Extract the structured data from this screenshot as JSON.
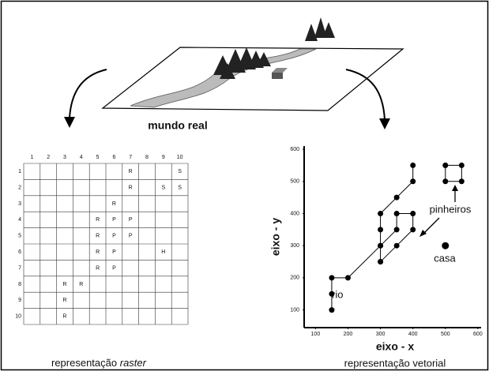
{
  "title": "mundo real",
  "raster": {
    "caption": "representação",
    "caption_em": "raster",
    "columns": [
      "1",
      "2",
      "3",
      "4",
      "5",
      "6",
      "7",
      "8",
      "9",
      "10"
    ],
    "rows": [
      "1",
      "2",
      "3",
      "4",
      "5",
      "6",
      "7",
      "8",
      "9",
      "10"
    ],
    "cells": [
      [
        null,
        null,
        null,
        null,
        null,
        null,
        "R",
        null,
        null,
        "S"
      ],
      [
        null,
        null,
        null,
        null,
        null,
        null,
        "R",
        null,
        "S",
        "S"
      ],
      [
        null,
        null,
        null,
        null,
        null,
        "R",
        null,
        null,
        null,
        null
      ],
      [
        null,
        null,
        null,
        null,
        "R",
        "P",
        "P",
        null,
        null,
        null
      ],
      [
        null,
        null,
        null,
        null,
        "R",
        "P",
        "P",
        null,
        null,
        null
      ],
      [
        null,
        null,
        null,
        null,
        "R",
        "P",
        null,
        null,
        "H",
        null
      ],
      [
        null,
        null,
        null,
        null,
        "R",
        "P",
        null,
        null,
        null,
        null
      ],
      [
        null,
        null,
        "R",
        "R",
        null,
        null,
        null,
        null,
        null,
        null
      ],
      [
        null,
        null,
        "R",
        null,
        null,
        null,
        null,
        null,
        null,
        null
      ],
      [
        null,
        null,
        "R",
        null,
        null,
        null,
        null,
        null,
        null,
        null
      ]
    ]
  },
  "vector": {
    "caption": "representação vetorial",
    "xlabel": "eixo - x",
    "ylabel": "eixo - y",
    "xlim": [
      65,
      610
    ],
    "ylim": [
      45,
      610
    ],
    "xticks": [
      100,
      200,
      300,
      400,
      500,
      600
    ],
    "yticks": [
      100,
      200,
      300,
      400,
      500,
      600
    ],
    "lines": [
      [
        [
          150,
          100
        ],
        [
          150,
          150
        ],
        [
          150,
          200
        ],
        [
          200,
          200
        ],
        [
          300,
          300
        ],
        [
          300,
          350
        ],
        [
          300,
          400
        ],
        [
          350,
          450
        ],
        [
          400,
          500
        ],
        [
          400,
          550
        ]
      ],
      [
        [
          300,
          250
        ],
        [
          300,
          300
        ],
        [
          350,
          350
        ],
        [
          350,
          400
        ],
        [
          400,
          400
        ],
        [
          400,
          350
        ],
        [
          350,
          300
        ],
        [
          300,
          250
        ]
      ],
      [
        [
          500,
          550
        ],
        [
          550,
          550
        ],
        [
          550,
          500
        ],
        [
          500,
          500
        ],
        [
          500,
          550
        ]
      ]
    ],
    "points": [
      [
        500,
        300
      ]
    ],
    "labels": {
      "river": "rio",
      "trees": "pinheiros",
      "house": "casa"
    }
  }
}
